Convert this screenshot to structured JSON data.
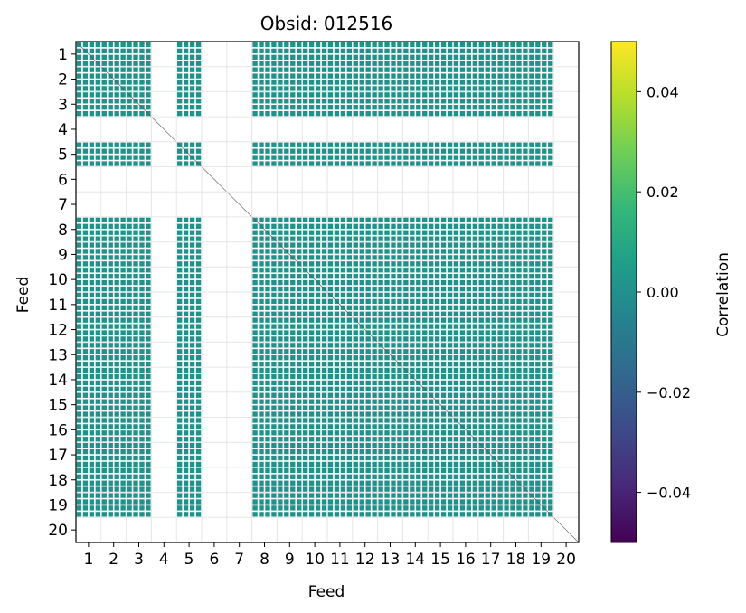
{
  "chart_data": {
    "type": "heatmap",
    "title": "Obsid: 012516",
    "xlabel": "Feed",
    "ylabel": "Feed",
    "x_ticks": [
      "1",
      "2",
      "3",
      "4",
      "5",
      "6",
      "7",
      "8",
      "9",
      "10",
      "11",
      "12",
      "13",
      "14",
      "15",
      "16",
      "17",
      "18",
      "19",
      "20"
    ],
    "y_ticks": [
      "1",
      "2",
      "3",
      "4",
      "5",
      "6",
      "7",
      "8",
      "9",
      "10",
      "11",
      "12",
      "13",
      "14",
      "15",
      "16",
      "17",
      "18",
      "19",
      "20"
    ],
    "feeds_with_data": [
      1,
      2,
      3,
      5,
      8,
      9,
      10,
      11,
      12,
      13,
      14,
      15,
      16,
      17,
      18,
      19
    ],
    "empty_feeds": [
      4,
      6,
      7,
      20
    ],
    "values_near": 0.0,
    "grid": true,
    "colorbar": {
      "label": "Correlation",
      "vmin": -0.05,
      "vmax": 0.05,
      "ticks": [
        "0.04",
        "0.02",
        "0.00",
        "−0.02",
        "−0.04"
      ],
      "tick_values": [
        0.04,
        0.02,
        0.0,
        -0.02,
        -0.04
      ],
      "colormap": "viridis"
    }
  },
  "colors": {
    "cell": "#21918c",
    "grid": "#e6e6e6",
    "colormap_stops": [
      "#440154",
      "#482878",
      "#3e4989",
      "#31688e",
      "#26828e",
      "#1f9e89",
      "#35b779",
      "#6ece58",
      "#b5de2b",
      "#fde725"
    ]
  }
}
